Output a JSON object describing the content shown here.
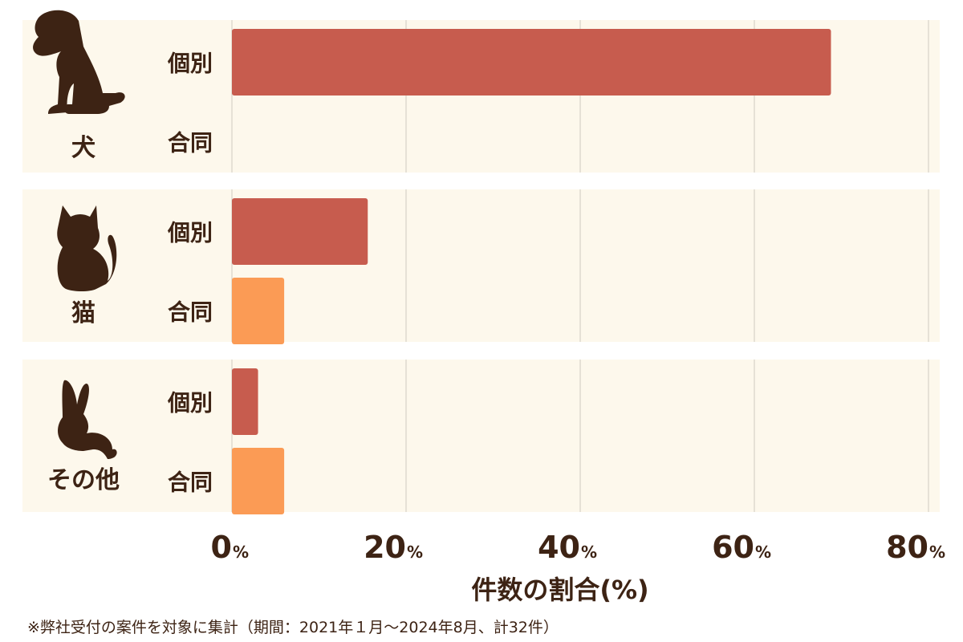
{
  "chart_data": {
    "type": "bar",
    "orientation": "horizontal",
    "groups": [
      {
        "label": "犬",
        "icon": "dog-icon",
        "bars": [
          {
            "category": "個別",
            "value": 68.8
          },
          {
            "category": "合同",
            "value": 0
          }
        ]
      },
      {
        "label": "猫",
        "icon": "cat-icon",
        "bars": [
          {
            "category": "個別",
            "value": 15.6
          },
          {
            "category": "合同",
            "value": 6.0
          }
        ]
      },
      {
        "label": "その他",
        "icon": "rabbit-icon",
        "bars": [
          {
            "category": "個別",
            "value": 3.0
          },
          {
            "category": "合同",
            "value": 6.0
          }
        ]
      }
    ],
    "xlim": [
      0,
      80
    ],
    "ticks": [
      {
        "value": 0,
        "label": "0",
        "unit": "%"
      },
      {
        "value": 20,
        "label": "20",
        "unit": "%"
      },
      {
        "value": 40,
        "label": "40",
        "unit": "%"
      },
      {
        "value": 60,
        "label": "60",
        "unit": "%"
      },
      {
        "value": 80,
        "label": "80",
        "unit": "%"
      }
    ],
    "xlabel": "件数の割合(%)",
    "grid": true,
    "colors": {
      "個別": "#c75c4e",
      "合同": "#fb9b55",
      "panel": "#fdf8ec",
      "grid": "#cfcac0",
      "text": "#3d2314"
    }
  },
  "footnote": "※弊社受付の案件を対象に集計（期間：2021年１月〜2024年8月、計32件）"
}
